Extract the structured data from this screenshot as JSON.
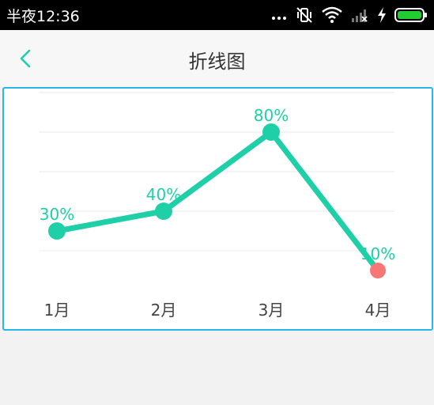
{
  "status_bar": {
    "time": "半夜12:36",
    "icons": [
      "more-dots-icon",
      "vibrate-off-icon",
      "wifi-icon",
      "signal-off-icon",
      "charging-bolt-icon",
      "battery-full-icon"
    ]
  },
  "header": {
    "title": "折线图",
    "back_icon": "chevron-left-icon"
  },
  "colors": {
    "accent": "#1fcfa8",
    "highlight": "#f77777",
    "border": "#29b8e6",
    "status_bar": "#000000",
    "battery": "#22cc33"
  },
  "chart_data": {
    "type": "line",
    "categories": [
      "1月",
      "2月",
      "3月",
      "4月"
    ],
    "values": [
      30,
      40,
      80,
      10
    ],
    "data_labels": [
      "30%",
      "40%",
      "80%",
      "10%"
    ],
    "highlighted_index": 3,
    "ylim": [
      0,
      100
    ],
    "grid": true,
    "title": "",
    "xlabel": "",
    "ylabel": ""
  }
}
